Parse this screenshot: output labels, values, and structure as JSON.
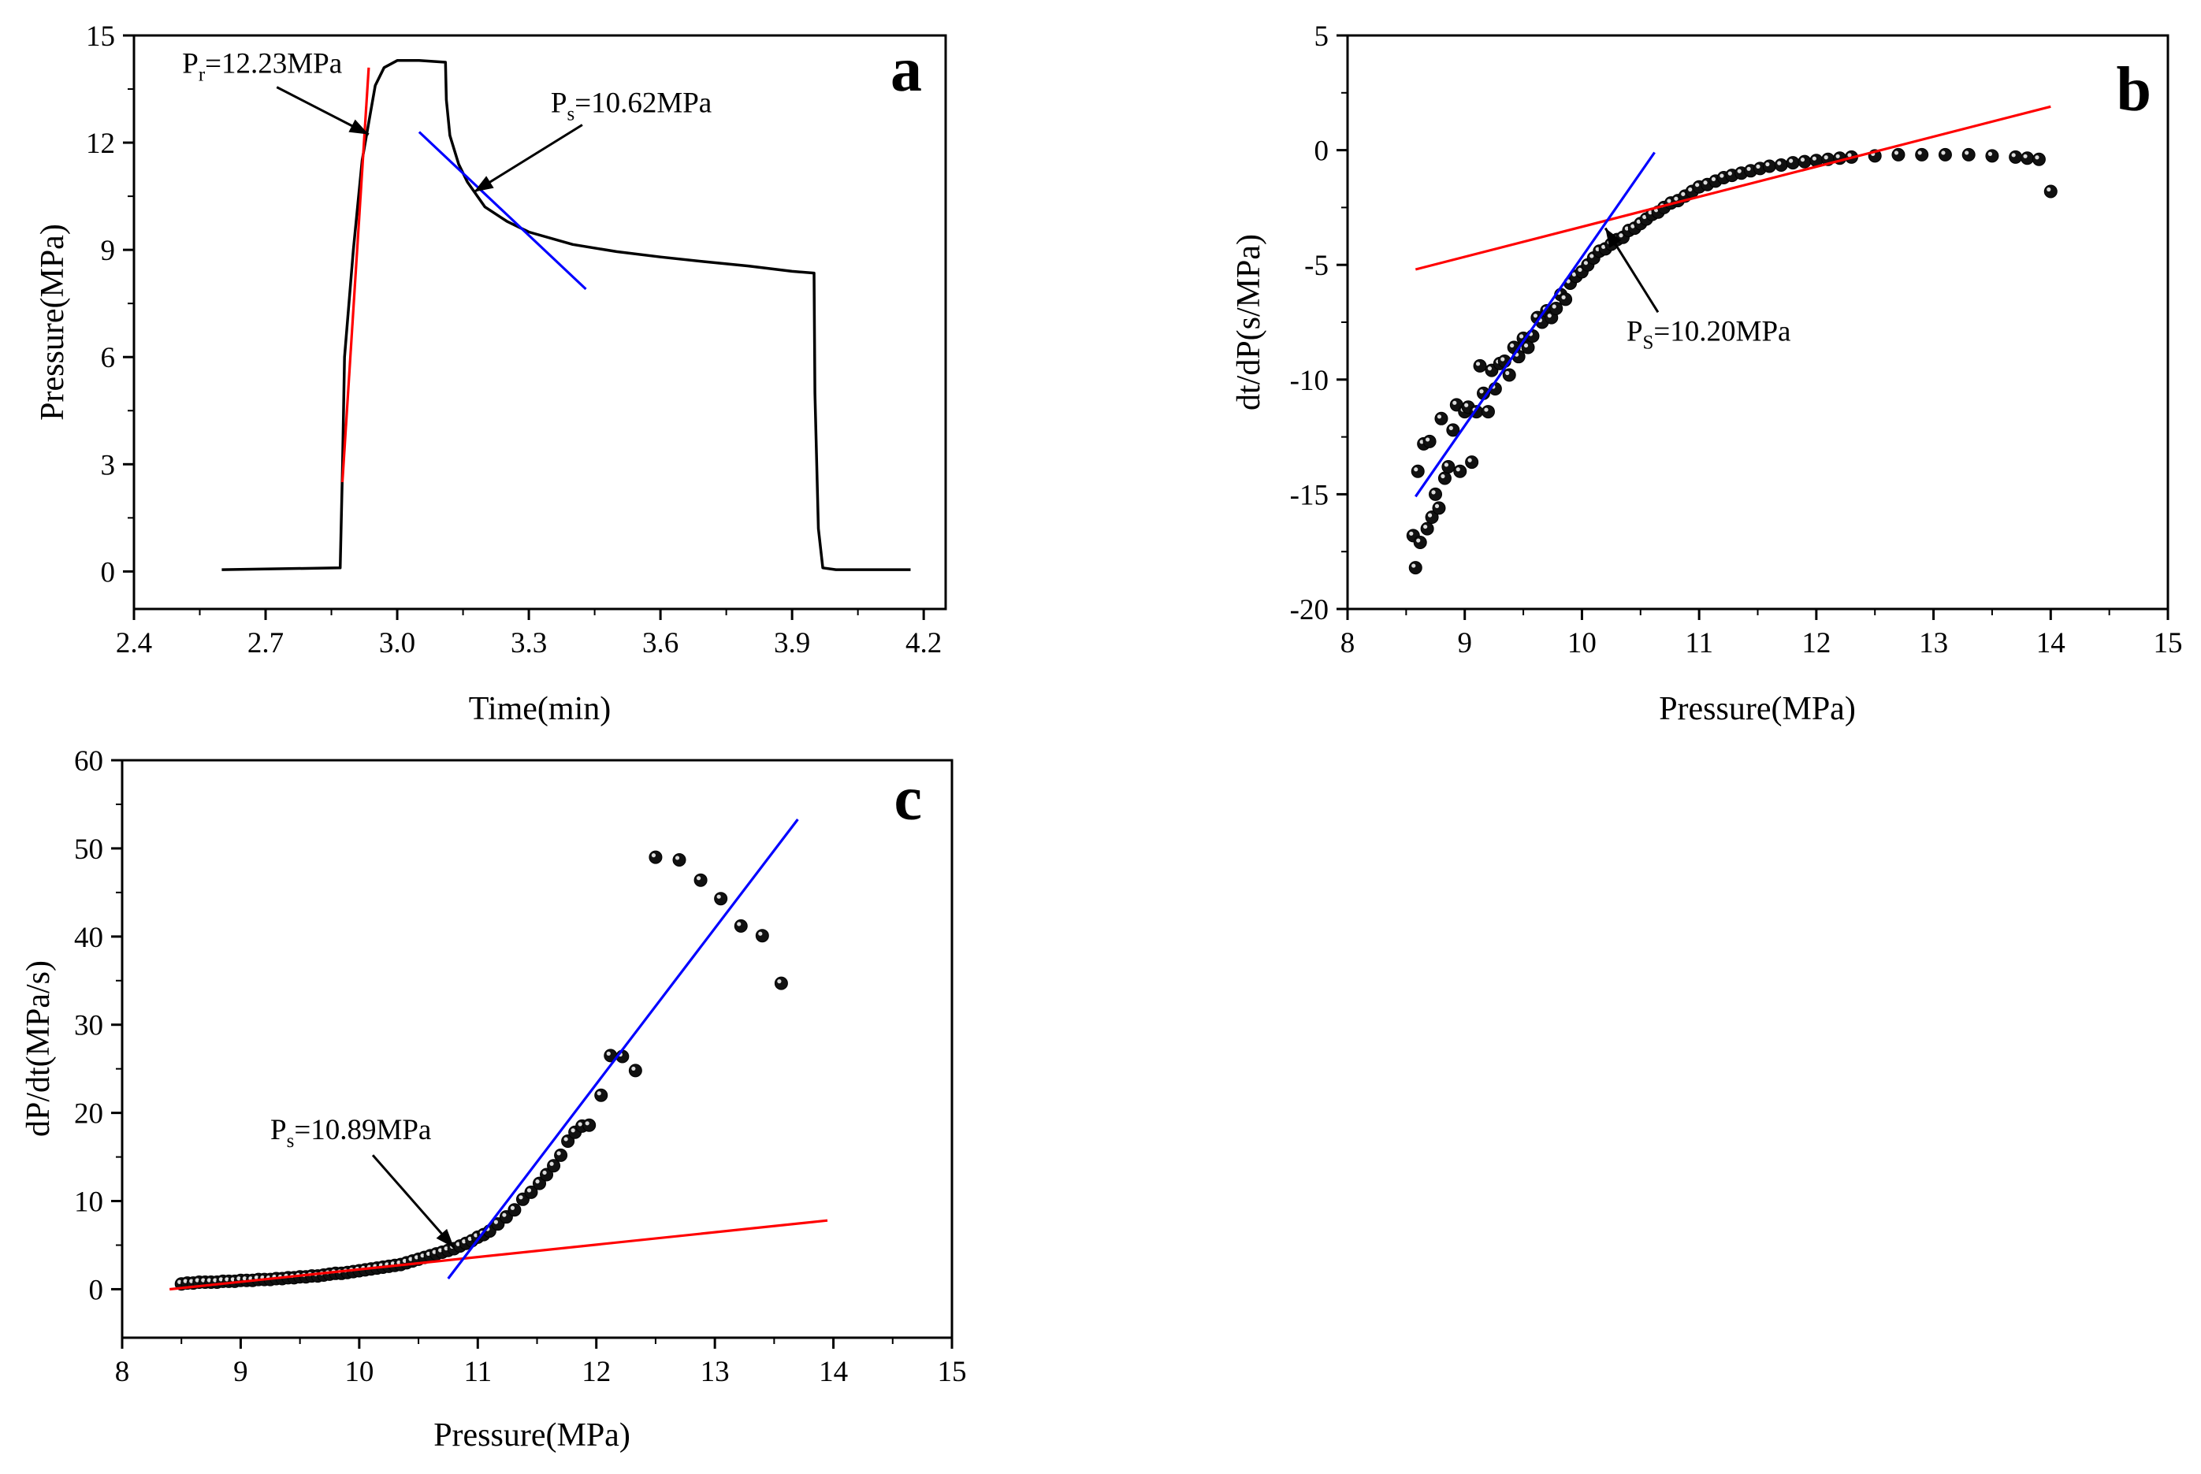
{
  "chart_data": [
    {
      "id": "a",
      "type": "line",
      "panel_label": "a",
      "xlabel": "Time(min)",
      "ylabel": "Pressure(MPa)",
      "xlim": [
        2.4,
        4.25
      ],
      "ylim": [
        -1.05,
        15
      ],
      "xticks": [
        2.4,
        2.7,
        3.0,
        3.3,
        3.6,
        3.9,
        4.2
      ],
      "xtick_labels": [
        "2.4",
        "2.7",
        "3.0",
        "3.3",
        "3.6",
        "3.9",
        "4.2"
      ],
      "yticks": [
        0,
        3,
        6,
        9,
        12,
        15
      ],
      "ytick_labels": [
        "0",
        "3",
        "6",
        "9",
        "12",
        "15"
      ],
      "series": [
        {
          "name": "pressure",
          "color": "#000000",
          "x": [
            2.6,
            2.87,
            2.875,
            2.88,
            2.9,
            2.92,
            2.94,
            2.95,
            2.97,
            3.0,
            3.05,
            3.11,
            3.112,
            3.12,
            3.14,
            3.16,
            3.2,
            3.25,
            3.3,
            3.4,
            3.5,
            3.6,
            3.7,
            3.8,
            3.9,
            3.95,
            3.952,
            3.96,
            3.97,
            4.0,
            4.1,
            4.17
          ],
          "y": [
            0.05,
            0.1,
            2.8,
            6.0,
            9.0,
            11.5,
            12.9,
            13.6,
            14.1,
            14.3,
            14.3,
            14.25,
            13.2,
            12.2,
            11.4,
            10.9,
            10.2,
            9.8,
            9.5,
            9.15,
            8.95,
            8.8,
            8.67,
            8.55,
            8.4,
            8.35,
            5.0,
            1.2,
            0.1,
            0.05,
            0.05,
            0.05
          ]
        },
        {
          "name": "fit-line-1",
          "color": "#ff0000",
          "x": [
            2.875,
            2.935
          ],
          "y": [
            2.5,
            14.1
          ]
        },
        {
          "name": "fit-line-2",
          "color": "#0000ff",
          "x": [
            3.05,
            3.43
          ],
          "y": [
            12.3,
            7.9
          ]
        }
      ],
      "annotations": [
        {
          "label": "P",
          "sub": "r",
          "value": "=12.23MPa",
          "tx": 2.51,
          "ty": 13.95,
          "ax": 2.935,
          "ay": 12.23
        },
        {
          "label": "P",
          "sub": "s",
          "value": "=10.62MPa",
          "tx": 3.35,
          "ty": 12.85,
          "ax": 3.175,
          "ay": 10.62
        }
      ]
    },
    {
      "id": "b",
      "type": "scatter",
      "panel_label": "b",
      "xlabel": "Pressure(MPa)",
      "ylabel": "dt/dP(s/MPa)",
      "xlim": [
        8,
        15
      ],
      "ylim": [
        -20,
        5
      ],
      "xticks": [
        8,
        9,
        10,
        11,
        12,
        13,
        14,
        15
      ],
      "xtick_labels": [
        "8",
        "9",
        "10",
        "11",
        "12",
        "13",
        "14",
        "15"
      ],
      "yticks": [
        -20,
        -15,
        -10,
        -5,
        0,
        5
      ],
      "ytick_labels": [
        "-20",
        "-15",
        "-10",
        "-5",
        "0",
        "5"
      ],
      "series": [
        {
          "name": "data",
          "color": "#000000",
          "x": [
            8.56,
            8.58,
            8.6,
            8.62,
            8.65,
            8.68,
            8.7,
            8.72,
            8.75,
            8.78,
            8.8,
            8.83,
            8.86,
            8.9,
            8.93,
            8.96,
            9.0,
            9.03,
            9.06,
            9.1,
            9.13,
            9.16,
            9.2,
            9.23,
            9.26,
            9.3,
            9.34,
            9.38,
            9.42,
            9.46,
            9.5,
            9.54,
            9.58,
            9.62,
            9.66,
            9.7,
            9.74,
            9.78,
            9.82,
            9.86,
            9.9,
            9.95,
            10.0,
            10.05,
            10.1,
            10.15,
            10.2,
            10.25,
            10.3,
            10.35,
            10.4,
            10.45,
            10.5,
            10.55,
            10.6,
            10.65,
            10.7,
            10.76,
            10.82,
            10.88,
            10.94,
            11.0,
            11.07,
            11.14,
            11.21,
            11.28,
            11.36,
            11.44,
            11.52,
            11.6,
            11.7,
            11.8,
            11.9,
            12.0,
            12.1,
            12.2,
            12.3,
            12.5,
            12.7,
            12.9,
            13.1,
            13.3,
            13.5,
            13.7,
            13.8,
            13.9,
            14.0
          ],
          "y": [
            -16.8,
            -18.2,
            -14.0,
            -17.1,
            -12.8,
            -16.5,
            -12.7,
            -16.0,
            -15.0,
            -15.6,
            -11.7,
            -14.3,
            -13.8,
            -12.2,
            -11.1,
            -14.0,
            -11.4,
            -11.2,
            -13.6,
            -11.4,
            -9.4,
            -10.6,
            -11.4,
            -9.6,
            -10.4,
            -9.3,
            -9.2,
            -9.8,
            -8.6,
            -9.0,
            -8.2,
            -8.6,
            -8.1,
            -7.3,
            -7.5,
            -7.0,
            -7.3,
            -6.9,
            -6.3,
            -6.5,
            -5.8,
            -5.5,
            -5.3,
            -5.0,
            -4.7,
            -4.4,
            -4.3,
            -4.1,
            -3.9,
            -3.8,
            -3.5,
            -3.4,
            -3.2,
            -3.0,
            -2.8,
            -2.7,
            -2.5,
            -2.3,
            -2.2,
            -2.0,
            -1.8,
            -1.6,
            -1.5,
            -1.35,
            -1.2,
            -1.1,
            -1.0,
            -0.9,
            -0.8,
            -0.7,
            -0.65,
            -0.55,
            -0.5,
            -0.45,
            -0.4,
            -0.35,
            -0.3,
            -0.25,
            -0.2,
            -0.2,
            -0.2,
            -0.2,
            -0.25,
            -0.3,
            -0.35,
            -0.4,
            -1.8
          ]
        },
        {
          "name": "fit-line-red",
          "color": "#ff0000",
          "x": [
            8.58,
            14.0
          ],
          "y": [
            -5.2,
            1.9
          ]
        },
        {
          "name": "fit-line-blue",
          "color": "#0000ff",
          "x": [
            8.58,
            10.62
          ],
          "y": [
            -15.1,
            -0.1
          ]
        }
      ],
      "annotations": [
        {
          "label": "P",
          "sub": "S",
          "value": "=10.20MPa",
          "tx": 10.38,
          "ty": -8.3,
          "ax": 10.2,
          "ay": -3.4
        }
      ]
    },
    {
      "id": "c",
      "type": "scatter",
      "panel_label": "c",
      "xlabel": "Pressure(MPa)",
      "ylabel": "dP/dt(MPa/s)",
      "xlim": [
        8,
        15
      ],
      "ylim": [
        -5.5,
        60
      ],
      "xticks": [
        8,
        9,
        10,
        11,
        12,
        13,
        14,
        15
      ],
      "xtick_labels": [
        "8",
        "9",
        "10",
        "11",
        "12",
        "13",
        "14",
        "15"
      ],
      "yticks": [
        0,
        10,
        20,
        30,
        40,
        50,
        60
      ],
      "ytick_labels": [
        "0",
        "10",
        "20",
        "30",
        "40",
        "50",
        "60"
      ],
      "series": [
        {
          "name": "data",
          "color": "#000000",
          "x": [
            8.5,
            8.55,
            8.6,
            8.65,
            8.7,
            8.75,
            8.8,
            8.85,
            8.9,
            8.95,
            9.0,
            9.05,
            9.1,
            9.15,
            9.2,
            9.25,
            9.3,
            9.35,
            9.4,
            9.45,
            9.5,
            9.55,
            9.6,
            9.65,
            9.7,
            9.75,
            9.8,
            9.85,
            9.9,
            9.95,
            10.0,
            10.05,
            10.1,
            10.15,
            10.2,
            10.25,
            10.3,
            10.35,
            10.4,
            10.45,
            10.5,
            10.55,
            10.6,
            10.65,
            10.7,
            10.75,
            10.8,
            10.85,
            10.9,
            10.95,
            11.0,
            11.05,
            11.1,
            11.17,
            11.24,
            11.31,
            11.38,
            11.45,
            11.52,
            11.58,
            11.64,
            11.7,
            11.76,
            11.82,
            11.88,
            11.94,
            12.04,
            12.12,
            12.22,
            12.33,
            12.5,
            12.7,
            12.88,
            13.05,
            13.22,
            13.4,
            13.56
          ],
          "y": [
            0.6,
            0.7,
            0.7,
            0.8,
            0.8,
            0.8,
            0.8,
            0.9,
            0.9,
            0.9,
            1.0,
            1.0,
            1.0,
            1.1,
            1.1,
            1.1,
            1.2,
            1.2,
            1.3,
            1.3,
            1.4,
            1.4,
            1.5,
            1.5,
            1.6,
            1.7,
            1.8,
            1.8,
            1.9,
            2.0,
            2.1,
            2.2,
            2.3,
            2.4,
            2.5,
            2.6,
            2.7,
            2.8,
            3.0,
            3.2,
            3.4,
            3.6,
            3.8,
            4.0,
            4.2,
            4.4,
            4.6,
            4.9,
            5.2,
            5.5,
            5.9,
            6.2,
            6.6,
            7.4,
            8.2,
            9.0,
            10.2,
            11.0,
            12.0,
            13.0,
            14.0,
            15.2,
            16.8,
            17.8,
            18.5,
            18.6,
            22.0,
            26.5,
            26.4,
            24.8,
            49.0,
            48.7,
            46.4,
            44.3,
            41.2,
            40.1,
            34.7
          ]
        },
        {
          "name": "fit-line-red",
          "color": "#ff0000",
          "x": [
            8.4,
            13.95
          ],
          "y": [
            0.0,
            7.8
          ]
        },
        {
          "name": "fit-line-blue",
          "color": "#0000ff",
          "x": [
            10.75,
            13.7
          ],
          "y": [
            1.2,
            53.3
          ]
        }
      ],
      "annotations": [
        {
          "label": "P",
          "sub": "s",
          "value": "=10.89MPa",
          "tx": 9.25,
          "ty": 17.0,
          "ax": 10.8,
          "ay": 4.7
        }
      ]
    }
  ]
}
